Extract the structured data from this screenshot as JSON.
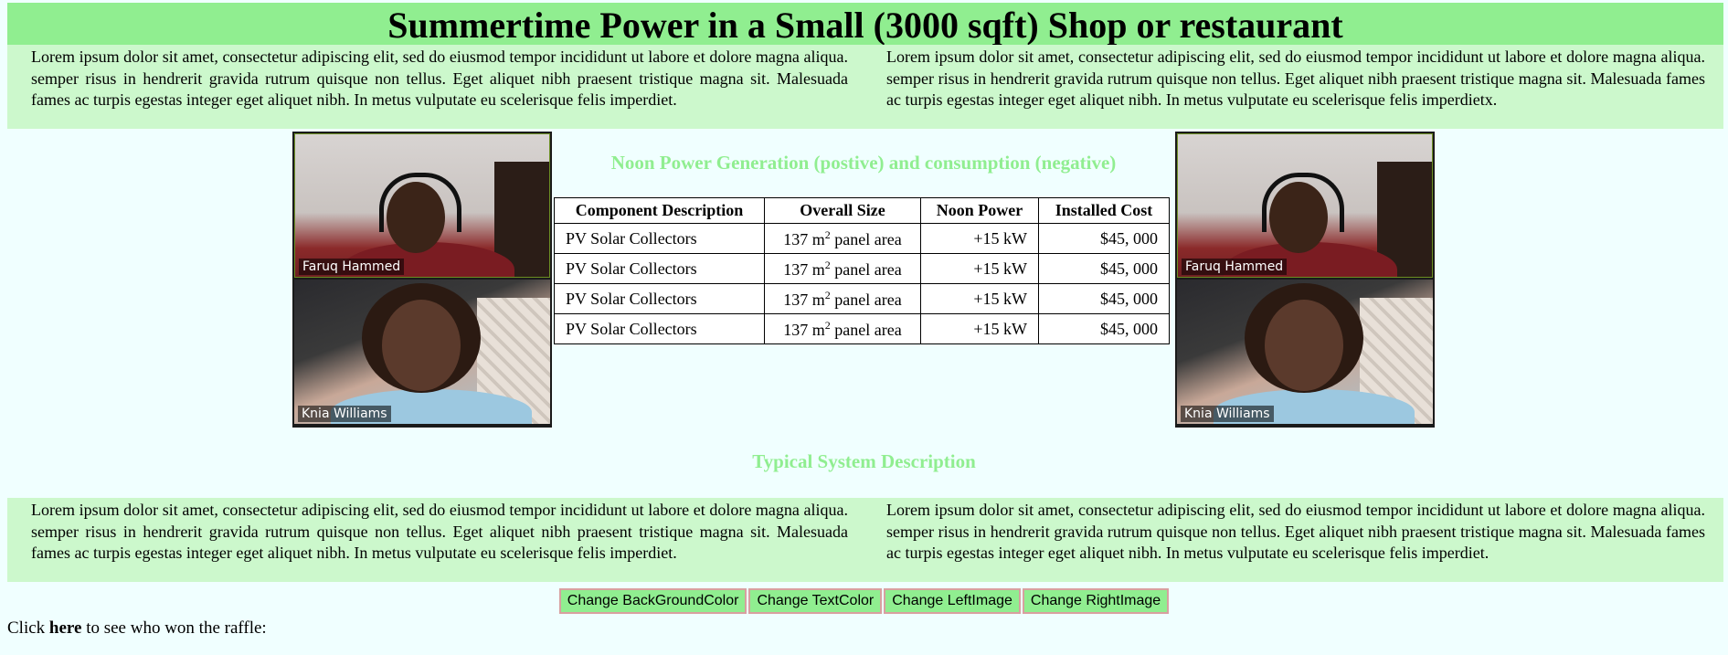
{
  "page": {
    "title": "Summertime Power in a Small (3000 sqft) Shop or restaurant"
  },
  "top_paragraphs": {
    "left": "Lorem ipsum dolor sit amet, consectetur adipiscing elit, sed do eiusmod tempor incididunt ut labore et dolore magna aliqua. semper risus in hendrerit gravida rutrum quisque non tellus. Eget aliquet nibh praesent tristique magna sit. Malesuada fames ac turpis egestas integer eget aliquet nibh. In metus vulputate eu scelerisque felis imperdiet.",
    "right": "Lorem ipsum dolor sit amet, consectetur adipiscing elit, sed do eiusmod tempor incididunt ut labore et dolore magna aliqua. semper risus in hendrerit gravida rutrum quisque non tellus. Eget aliquet nibh praesent tristique magna sit. Malesuada fames ac turpis egestas integer eget aliquet nibh. In metus vulputate eu scelerisque felis imperdietx."
  },
  "video_panels": {
    "left": {
      "top_name": "Faruq Hammed",
      "bottom_name": "Knia Williams"
    },
    "right": {
      "top_name": "Faruq Hammed",
      "bottom_name": "Knia Williams"
    }
  },
  "noon_table": {
    "heading": "Noon Power Generation (postive) and consumption (negative)",
    "headers": [
      "Component Description",
      "Overall Size",
      "Noon Power",
      "Installed Cost"
    ],
    "rows": [
      {
        "description": "PV Solar Collectors",
        "size_prefix": "137 m",
        "size_exp": "2",
        "size_suffix": " panel area",
        "power": "+15 kW",
        "cost": "$45, 000"
      },
      {
        "description": "PV Solar Collectors",
        "size_prefix": "137 m",
        "size_exp": "2",
        "size_suffix": " panel area",
        "power": "+15 kW",
        "cost": "$45, 000"
      },
      {
        "description": "PV Solar Collectors",
        "size_prefix": "137 m",
        "size_exp": "2",
        "size_suffix": " panel area",
        "power": "+15 kW",
        "cost": "$45, 000"
      },
      {
        "description": "PV Solar Collectors",
        "size_prefix": "137 m",
        "size_exp": "2",
        "size_suffix": " panel area",
        "power": "+15 kW",
        "cost": "$45, 000"
      }
    ]
  },
  "typical_section": {
    "heading": "Typical System Description",
    "left": "Lorem ipsum dolor sit amet, consectetur adipiscing elit, sed do eiusmod tempor incididunt ut labore et dolore magna aliqua. semper risus in hendrerit gravida rutrum quisque non tellus. Eget aliquet nibh praesent tristique magna sit. Malesuada fames ac turpis egestas integer eget aliquet nibh. In metus vulputate eu scelerisque felis imperdiet.",
    "right": "Lorem ipsum dolor sit amet, consectetur adipiscing elit, sed do eiusmod tempor incididunt ut labore et dolore magna aliqua. semper risus in hendrerit gravida rutrum quisque non tellus. Eget aliquet nibh praesent tristique magna sit. Malesuada fames ac turpis egestas integer eget aliquet nibh. In metus vulputate eu scelerisque felis imperdiet."
  },
  "buttons": {
    "bg_color": "Change BackGroundColor",
    "text_color": "Change TextColor",
    "left_image": "Change LeftImage",
    "right_image": "Change RightImage"
  },
  "raffle": {
    "prefix": "Click ",
    "link": "here",
    "suffix": " to see who won the raffle:"
  },
  "colors": {
    "page_background": "#f0ffff",
    "title_background": "#90ee90",
    "paragraph_background": "#ccf8cc",
    "heading_text": "#90ee90",
    "button_background": "#90ee90"
  }
}
